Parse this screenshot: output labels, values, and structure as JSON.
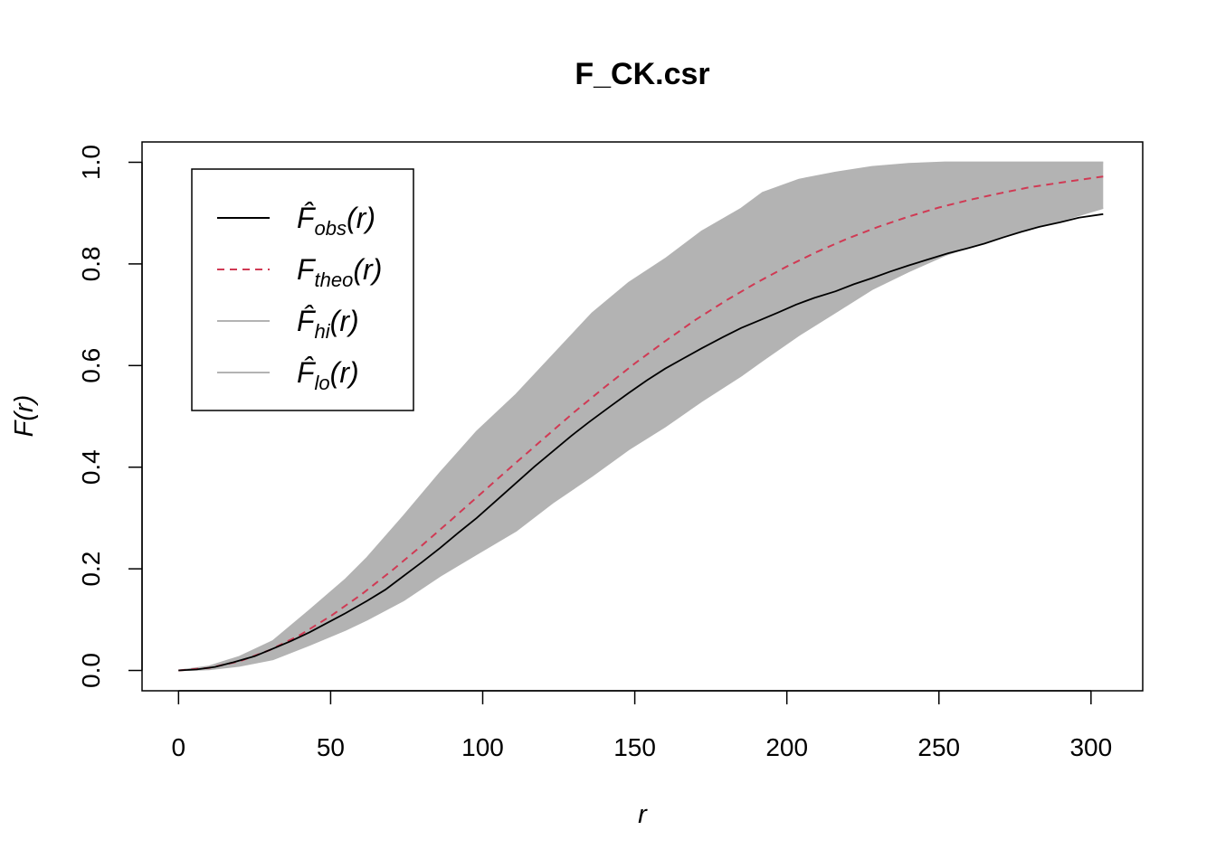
{
  "chart_data": {
    "type": "line",
    "title": "F_CK.csr",
    "xlabel": "r",
    "ylabel": "F(r)",
    "xlim": [
      -12,
      317
    ],
    "ylim": [
      -0.04,
      1.04
    ],
    "xticks": [
      0,
      50,
      100,
      150,
      200,
      250,
      300
    ],
    "yticks": [
      0.0,
      0.2,
      0.4,
      0.6,
      0.8,
      1.0
    ],
    "xtick_labels": [
      "0",
      "50",
      "100",
      "150",
      "200",
      "250",
      "300"
    ],
    "ytick_labels": [
      "0.0",
      "0.2",
      "0.4",
      "0.6",
      "0.8",
      "1.0"
    ],
    "grid": false,
    "legend_position": "top-left",
    "series": [
      {
        "name": "F̂obs(r)",
        "label_main": "F̂",
        "label_sub": "obs",
        "label_tail": "(r)",
        "color": "#000000",
        "style": "solid",
        "x": [
          0,
          6,
          12,
          18,
          25,
          31,
          37,
          43,
          49,
          55,
          62,
          68,
          74,
          80,
          86,
          92,
          98,
          105,
          111,
          117,
          123,
          129,
          135,
          142,
          148,
          154,
          160,
          166,
          172,
          179,
          185,
          191,
          197,
          203,
          209,
          216,
          222,
          228,
          234,
          240,
          246,
          253,
          259,
          265,
          271,
          277,
          283,
          290,
          296,
          304
        ],
        "values": [
          0.0,
          0.002,
          0.007,
          0.016,
          0.028,
          0.043,
          0.058,
          0.075,
          0.094,
          0.113,
          0.137,
          0.159,
          0.186,
          0.213,
          0.241,
          0.271,
          0.3,
          0.337,
          0.369,
          0.401,
          0.431,
          0.461,
          0.489,
          0.52,
          0.546,
          0.571,
          0.594,
          0.614,
          0.634,
          0.656,
          0.674,
          0.689,
          0.704,
          0.72,
          0.733,
          0.746,
          0.76,
          0.772,
          0.785,
          0.797,
          0.808,
          0.821,
          0.83,
          0.84,
          0.852,
          0.863,
          0.873,
          0.882,
          0.891,
          0.898
        ]
      },
      {
        "name": "Ftheo(r)",
        "label_main": "F",
        "label_sub": "theo",
        "label_tail": "(r)",
        "color": "#d03a54",
        "style": "dashed",
        "x": [
          0,
          10,
          20,
          30,
          40,
          50,
          60,
          70,
          80,
          90,
          100,
          110,
          120,
          130,
          140,
          150,
          160,
          170,
          180,
          190,
          200,
          210,
          220,
          230,
          240,
          250,
          260,
          270,
          280,
          290,
          304
        ],
        "values": [
          0.0,
          0.005,
          0.018,
          0.04,
          0.07,
          0.107,
          0.149,
          0.196,
          0.246,
          0.298,
          0.351,
          0.404,
          0.456,
          0.508,
          0.557,
          0.604,
          0.648,
          0.69,
          0.728,
          0.763,
          0.795,
          0.824,
          0.85,
          0.873,
          0.893,
          0.911,
          0.926,
          0.939,
          0.951,
          0.96,
          0.972
        ]
      },
      {
        "name": "F̂hi(r)",
        "label_main": "F̂",
        "label_sub": "hi",
        "label_tail": "(r)",
        "color": "#b3b3b3",
        "style": "solid",
        "x": [
          0,
          10,
          20,
          31,
          43,
          55,
          62,
          74,
          86,
          98,
          111,
          123,
          136,
          148,
          160,
          172,
          185,
          192,
          204,
          216,
          228,
          240,
          252,
          265,
          277,
          290,
          304
        ],
        "values": [
          0.0,
          0.008,
          0.027,
          0.058,
          0.118,
          0.18,
          0.222,
          0.304,
          0.389,
          0.47,
          0.543,
          0.62,
          0.703,
          0.763,
          0.81,
          0.864,
          0.909,
          0.94,
          0.966,
          0.98,
          0.991,
          0.997,
          1.0,
          1.0,
          1.0,
          1.0,
          1.0
        ]
      },
      {
        "name": "F̂lo(r)",
        "label_main": "F̂",
        "label_sub": "lo",
        "label_tail": "(r)",
        "color": "#b3b3b3",
        "style": "solid",
        "x": [
          0,
          10,
          20,
          31,
          43,
          55,
          62,
          74,
          86,
          98,
          111,
          123,
          136,
          148,
          160,
          172,
          185,
          192,
          204,
          216,
          228,
          240,
          252,
          265,
          277,
          290,
          304
        ],
        "values": [
          0.0,
          0.002,
          0.009,
          0.022,
          0.05,
          0.08,
          0.1,
          0.138,
          0.186,
          0.229,
          0.275,
          0.33,
          0.383,
          0.435,
          0.48,
          0.53,
          0.58,
          0.61,
          0.66,
          0.705,
          0.75,
          0.785,
          0.817,
          0.843,
          0.865,
          0.885,
          0.91
        ]
      }
    ]
  }
}
